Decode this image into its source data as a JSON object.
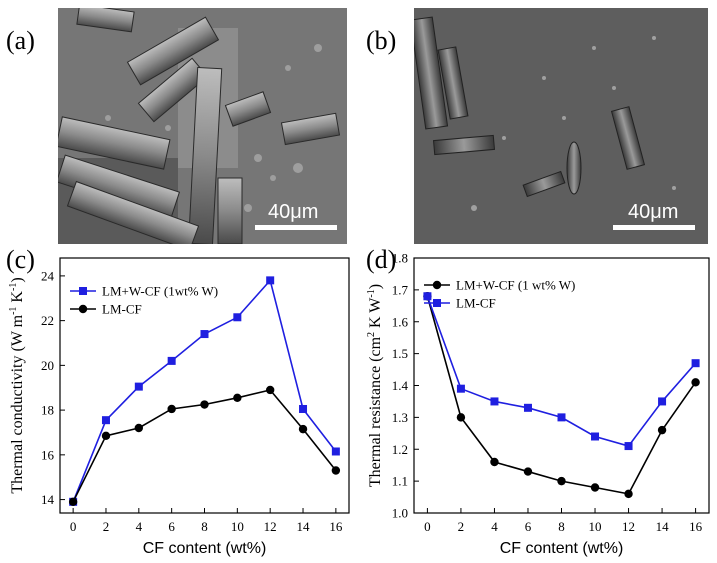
{
  "panels": {
    "a": {
      "label": "(a)",
      "scale": "40μm"
    },
    "b": {
      "label": "(b)",
      "scale": "40μm"
    },
    "c": {
      "label": "(c)"
    },
    "d": {
      "label": "(d)"
    }
  },
  "chart_data": [
    {
      "type": "line",
      "xlabel": "CF content (wt%)",
      "ylabel": "Thermal conductivity (W m⁻¹ K⁻¹)",
      "ylabel_parts": [
        "Thermal conductivity (W m",
        "-1",
        " K",
        "-1",
        ")"
      ],
      "x": [
        0,
        2,
        4,
        6,
        8,
        10,
        12,
        14,
        16
      ],
      "xlim": [
        -0.8,
        16.8
      ],
      "ylim": [
        13.4,
        24.8
      ],
      "xticks": [
        "0",
        "2",
        "4",
        "6",
        "8",
        "10",
        "12",
        "14",
        "16"
      ],
      "yticks": [
        "14",
        "16",
        "18",
        "20",
        "22",
        "24"
      ],
      "legend_position": "top-left",
      "series": [
        {
          "name": "LM+W-CF (1wt% W)",
          "color": "#1f1fe0",
          "marker": "square",
          "values": [
            13.9,
            17.55,
            19.05,
            20.2,
            21.4,
            22.15,
            23.8,
            18.05,
            16.15
          ]
        },
        {
          "name": "LM-CF",
          "color": "#000000",
          "marker": "circle",
          "values": [
            13.9,
            16.85,
            17.2,
            18.05,
            18.25,
            18.55,
            18.9,
            17.15,
            15.3
          ]
        }
      ]
    },
    {
      "type": "line",
      "xlabel": "CF content (wt%)",
      "ylabel": "Thermal resistance (cm² K W⁻¹)",
      "ylabel_parts": [
        "Thermal resistance (cm",
        "2",
        " K W",
        "-1",
        ")"
      ],
      "x": [
        0,
        2,
        4,
        6,
        8,
        10,
        12,
        14,
        16
      ],
      "xlim": [
        -0.8,
        16.8
      ],
      "ylim": [
        1.0,
        1.8
      ],
      "xticks": [
        "0",
        "2",
        "4",
        "6",
        "8",
        "10",
        "12",
        "14",
        "16"
      ],
      "yticks": [
        "1.0",
        "1.1",
        "1.2",
        "1.3",
        "1.4",
        "1.5",
        "1.6",
        "1.7",
        "1.8"
      ],
      "legend_position": "top-left",
      "series": [
        {
          "name": "LM+W-CF (1 wt% W)",
          "color": "#000000",
          "marker": "circle",
          "values": [
            1.68,
            1.3,
            1.16,
            1.13,
            1.1,
            1.08,
            1.06,
            1.26,
            1.41
          ]
        },
        {
          "name": "LM-CF",
          "color": "#1f1fe0",
          "marker": "square",
          "values": [
            1.68,
            1.39,
            1.35,
            1.33,
            1.3,
            1.24,
            1.21,
            1.35,
            1.47
          ]
        }
      ]
    }
  ]
}
